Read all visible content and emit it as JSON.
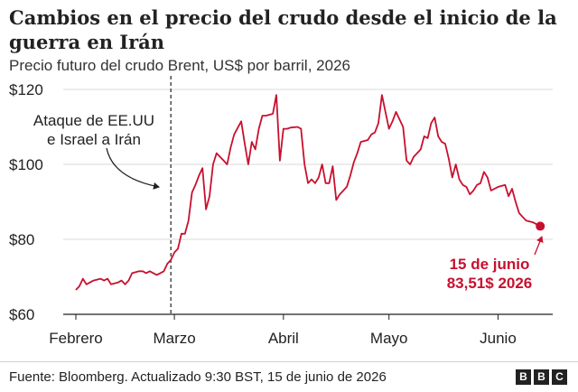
{
  "title": "Cambios en el precio del crudo desde el inicio de la guerra en Irán",
  "subtitle": "Precio futuro del crudo Brent, US$ por barril, 2026",
  "footer": {
    "source": "Fuente: Bloomberg. Actualizado 9:30 BST, 15 de junio de 2026"
  },
  "logo": [
    "B",
    "B",
    "C"
  ],
  "chart_data": {
    "type": "line",
    "ylim": [
      60,
      120
    ],
    "xlim": [
      "2026-02-01",
      "2026-06-15"
    ],
    "y_ticks": [
      {
        "value": 60,
        "label": "$60"
      },
      {
        "value": 80,
        "label": "$80"
      },
      {
        "value": 100,
        "label": "$100"
      },
      {
        "value": 120,
        "label": "$120"
      }
    ],
    "x_ticks": [
      {
        "date": "2026-02-01",
        "label": "Febrero"
      },
      {
        "date": "2026-03-01",
        "label": "Marzo"
      },
      {
        "date": "2026-04-01",
        "label": "Abril"
      },
      {
        "date": "2026-05-01",
        "label": "Mayo"
      },
      {
        "date": "2026-06-01",
        "label": "Junio"
      }
    ],
    "grid": "horizontal",
    "line_color": "#c8102e",
    "series": [
      {
        "points": [
          [
            "2026-02-01",
            66.5
          ],
          [
            "2026-02-02",
            67.5
          ],
          [
            "2026-02-03",
            69.5
          ],
          [
            "2026-02-04",
            68.0
          ],
          [
            "2026-02-05",
            68.5
          ],
          [
            "2026-02-06",
            69.0
          ],
          [
            "2026-02-08",
            69.5
          ],
          [
            "2026-02-09",
            69.0
          ],
          [
            "2026-02-10",
            69.5
          ],
          [
            "2026-02-11",
            68.0
          ],
          [
            "2026-02-13",
            68.5
          ],
          [
            "2026-02-14",
            69.0
          ],
          [
            "2026-02-15",
            68.0
          ],
          [
            "2026-02-16",
            69.0
          ],
          [
            "2026-02-17",
            71.0
          ],
          [
            "2026-02-19",
            71.5
          ],
          [
            "2026-02-20",
            71.5
          ],
          [
            "2026-02-21",
            71.0
          ],
          [
            "2026-02-22",
            71.5
          ],
          [
            "2026-02-24",
            70.5
          ],
          [
            "2026-02-25",
            71.0
          ],
          [
            "2026-02-26",
            71.5
          ],
          [
            "2026-02-27",
            73.5
          ],
          [
            "2026-02-28",
            74.5
          ],
          [
            "2026-03-01",
            76.5
          ],
          [
            "2026-03-02",
            77.5
          ],
          [
            "2026-03-03",
            81.5
          ],
          [
            "2026-03-04",
            81.5
          ],
          [
            "2026-03-05",
            85.0
          ],
          [
            "2026-03-06",
            92.5
          ],
          [
            "2026-03-07",
            94.5
          ],
          [
            "2026-03-08",
            97.0
          ],
          [
            "2026-03-09",
            99.0
          ],
          [
            "2026-03-10",
            88.0
          ],
          [
            "2026-03-11",
            91.5
          ],
          [
            "2026-03-12",
            100.0
          ],
          [
            "2026-03-13",
            103.0
          ],
          [
            "2026-03-15",
            101.0
          ],
          [
            "2026-03-16",
            100.0
          ],
          [
            "2026-03-17",
            104.5
          ],
          [
            "2026-03-18",
            108.0
          ],
          [
            "2026-03-20",
            111.5
          ],
          [
            "2026-03-21",
            105.5
          ],
          [
            "2026-03-22",
            100.0
          ],
          [
            "2026-03-23",
            106.0
          ],
          [
            "2026-03-24",
            104.0
          ],
          [
            "2026-03-25",
            109.5
          ],
          [
            "2026-03-26",
            113.0
          ],
          [
            "2026-03-27",
            113.0
          ],
          [
            "2026-03-29",
            113.5
          ],
          [
            "2026-03-30",
            118.5
          ],
          [
            "2026-03-31",
            101.0
          ],
          [
            "2026-04-01",
            109.5
          ],
          [
            "2026-04-02",
            109.5
          ],
          [
            "2026-04-03",
            109.8
          ],
          [
            "2026-04-05",
            110.0
          ],
          [
            "2026-04-06",
            109.5
          ],
          [
            "2026-04-07",
            100.0
          ],
          [
            "2026-04-08",
            95.0
          ],
          [
            "2026-04-09",
            96.0
          ],
          [
            "2026-04-10",
            95.0
          ],
          [
            "2026-04-11",
            96.5
          ],
          [
            "2026-04-12",
            100.0
          ],
          [
            "2026-04-13",
            95.0
          ],
          [
            "2026-04-14",
            95.0
          ],
          [
            "2026-04-15",
            99.5
          ],
          [
            "2026-04-16",
            90.5
          ],
          [
            "2026-04-17",
            92.0
          ],
          [
            "2026-04-19",
            94.0
          ],
          [
            "2026-04-20",
            97.0
          ],
          [
            "2026-04-21",
            100.5
          ],
          [
            "2026-04-22",
            103.0
          ],
          [
            "2026-04-23",
            106.0
          ],
          [
            "2026-04-25",
            106.5
          ],
          [
            "2026-04-26",
            108.0
          ],
          [
            "2026-04-27",
            108.5
          ],
          [
            "2026-04-28",
            111.0
          ],
          [
            "2026-04-29",
            118.5
          ],
          [
            "2026-04-30",
            114.0
          ],
          [
            "2026-05-01",
            109.5
          ],
          [
            "2026-05-02",
            111.5
          ],
          [
            "2026-05-03",
            114.0
          ],
          [
            "2026-05-05",
            110.0
          ],
          [
            "2026-05-06",
            101.0
          ],
          [
            "2026-05-07",
            100.0
          ],
          [
            "2026-05-08",
            102.0
          ],
          [
            "2026-05-10",
            104.0
          ],
          [
            "2026-05-11",
            107.5
          ],
          [
            "2026-05-12",
            107.0
          ],
          [
            "2026-05-13",
            111.0
          ],
          [
            "2026-05-14",
            112.5
          ],
          [
            "2026-05-15",
            107.5
          ],
          [
            "2026-05-16",
            106.0
          ],
          [
            "2026-05-17",
            105.5
          ],
          [
            "2026-05-18",
            101.5
          ],
          [
            "2026-05-19",
            96.5
          ],
          [
            "2026-05-20",
            100.0
          ],
          [
            "2026-05-21",
            96.0
          ],
          [
            "2026-05-22",
            94.5
          ],
          [
            "2026-05-23",
            94.0
          ],
          [
            "2026-05-24",
            92.0
          ],
          [
            "2026-05-25",
            93.0
          ],
          [
            "2026-05-26",
            94.5
          ],
          [
            "2026-05-27",
            95.0
          ],
          [
            "2026-05-28",
            98.0
          ],
          [
            "2026-05-29",
            96.5
          ],
          [
            "2026-05-30",
            93.0
          ],
          [
            "2026-06-01",
            94.0
          ],
          [
            "2026-06-03",
            94.5
          ],
          [
            "2026-06-04",
            91.5
          ],
          [
            "2026-06-05",
            93.5
          ],
          [
            "2026-06-06",
            90.0
          ],
          [
            "2026-06-07",
            87.0
          ],
          [
            "2026-06-09",
            85.0
          ],
          [
            "2026-06-11",
            84.5
          ],
          [
            "2026-06-13",
            83.51
          ]
        ]
      }
    ],
    "annotations": {
      "event": {
        "date": "2026-02-28",
        "lines": [
          "Ataque de EE.UU",
          "e Israel a Irán"
        ]
      },
      "last": {
        "date": "2026-06-13",
        "value": 83.51,
        "lines": [
          "15 de junio",
          "83,51$ 2026"
        ]
      }
    }
  }
}
